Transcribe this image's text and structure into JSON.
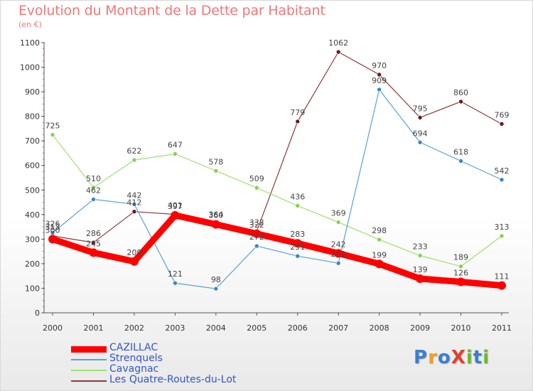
{
  "title": "Evolution du Montant de la Dette par Habitant",
  "unit": "(en €)",
  "logo": {
    "text": "ProXiti",
    "letters": [
      "P",
      "r",
      "o",
      "X",
      "i",
      "t",
      "i"
    ],
    "letter_colors": [
      "#3a7fd0",
      "#f0a020",
      "#3a7fd0",
      "#e04030",
      "#70b830",
      "#3a7fd0",
      "#70b830"
    ]
  },
  "chart_data": {
    "type": "line",
    "categories": [
      "2000",
      "2001",
      "2002",
      "2003",
      "2004",
      "2005",
      "2006",
      "2007",
      "2008",
      "2009",
      "2010",
      "2011"
    ],
    "ylim": [
      0,
      1100
    ],
    "yticks": [
      0,
      100,
      200,
      300,
      400,
      500,
      600,
      700,
      800,
      900,
      1000,
      1100
    ],
    "grid": false,
    "legend_position": "bottom-left",
    "series": [
      {
        "name": "CAZILLAC",
        "color": "#ff0000",
        "values": [
          300,
          245,
          209,
          397,
          360,
          322,
          283,
          242,
          199,
          139,
          126,
          111
        ],
        "labels": [
          "300",
          "245",
          "209",
          "397",
          "360",
          "322",
          "283",
          "242",
          "199",
          "139",
          "126",
          "111"
        ]
      },
      {
        "name": "Strenquels",
        "color": "#5aa0d8",
        "values": [
          326,
          462,
          442,
          121,
          98,
          272,
          231,
          202,
          909,
          694,
          618,
          542
        ],
        "labels": [
          "326",
          "462",
          "442",
          "121",
          "98",
          "272",
          "231",
          "202",
          "909",
          "694",
          "618",
          "542"
        ]
      },
      {
        "name": "Cavagnac",
        "color": "#a0e070",
        "values": [
          725,
          510,
          622,
          647,
          578,
          509,
          436,
          369,
          298,
          233,
          189,
          313
        ],
        "labels": [
          "725",
          "510",
          "622",
          "647",
          "578",
          "509",
          "436",
          "369",
          "298",
          "233",
          "189",
          "313"
        ]
      },
      {
        "name": "Les Quatre-Routes-du-Lot",
        "color": "#8b3a3a",
        "values": [
          313,
          286,
          412,
          401,
          364,
          332,
          779,
          1062,
          970,
          795,
          860,
          769
        ],
        "labels": [
          "313",
          "286",
          "412",
          "401",
          "364",
          "332",
          "779",
          "1062",
          "970",
          "795",
          "860",
          "769"
        ]
      }
    ]
  }
}
